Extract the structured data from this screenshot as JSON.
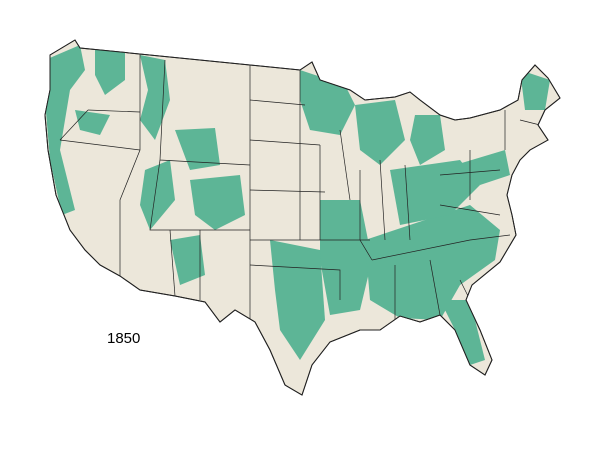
{
  "map": {
    "year_label": "1850",
    "colors": {
      "land": "#ece7da",
      "forest": "#5db596",
      "borders": "#222222",
      "background": "#ffffff"
    }
  }
}
